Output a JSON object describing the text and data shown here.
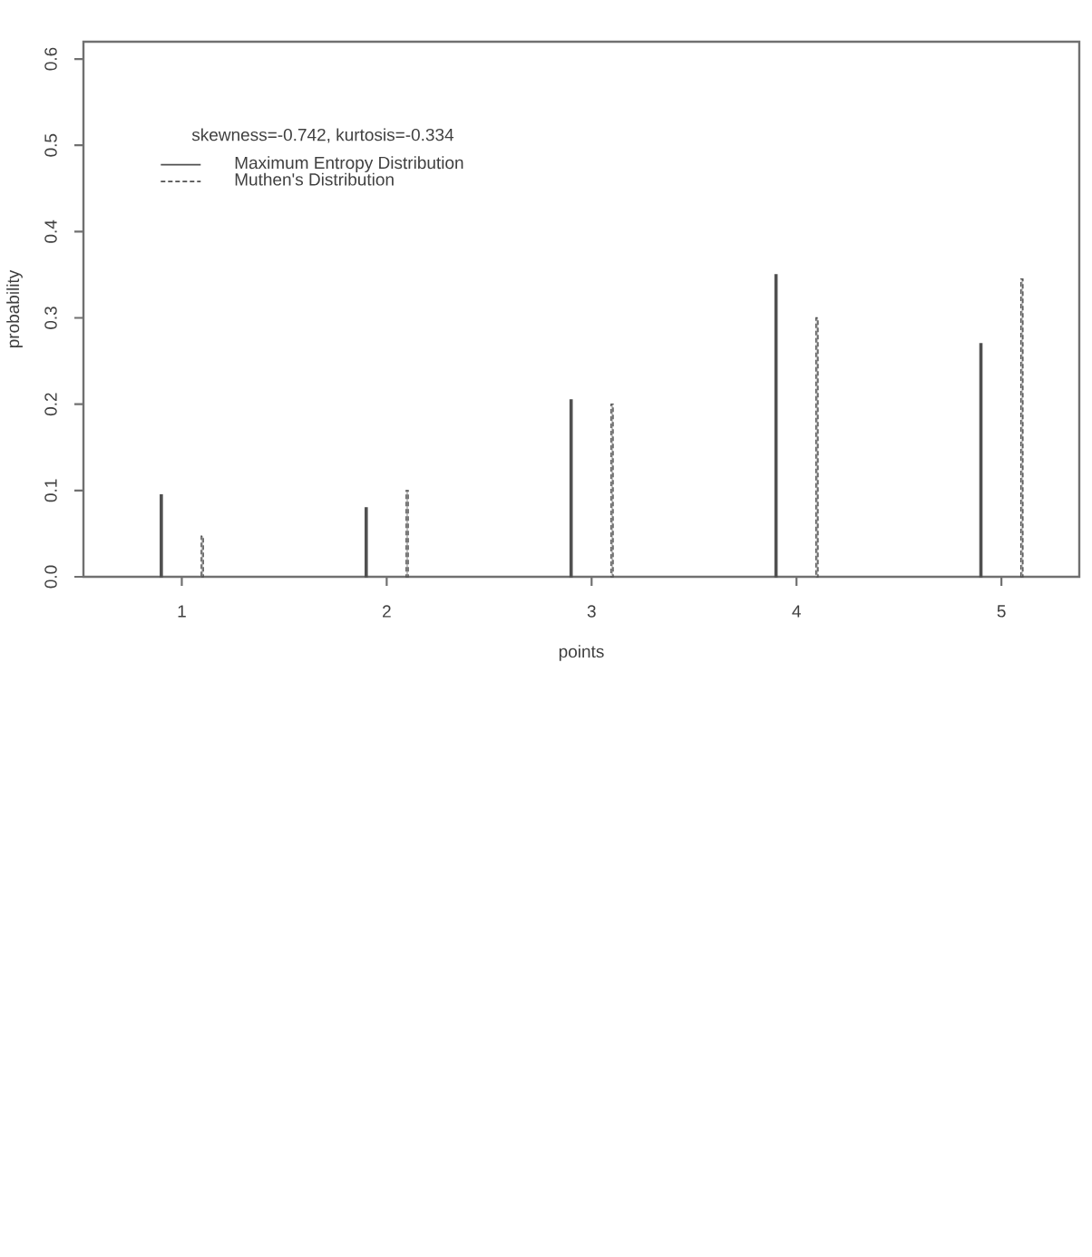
{
  "chart_data": {
    "type": "bar",
    "xlabel": "points",
    "ylabel": "probability",
    "legend_title": "skewness=-0.742, kurtosis=-0.334",
    "xlim": [
      0.52,
      5.38
    ],
    "ylim": [
      0,
      0.62
    ],
    "xticks": [
      1,
      2,
      3,
      4,
      5
    ],
    "yticks": [
      {
        "value": 0,
        "label": "0.0"
      },
      0.1,
      0.2,
      0.3,
      0.4,
      0.5,
      0.6
    ],
    "legend": "top left",
    "series": [
      {
        "name": "Maximum Entropy Distribution",
        "color": "#505050",
        "line_style": "solid",
        "x": [
          0.9,
          1.9,
          2.9,
          3.9,
          4.9
        ],
        "values": [
          0.095,
          0.08,
          0.205,
          0.35,
          0.27
        ]
      },
      {
        "name": "Muthen's Distribution",
        "color": "#505050",
        "line_style": "dashed",
        "x": [
          1.1,
          2.1,
          3.1,
          4.1,
          5.1
        ],
        "values": [
          0.047,
          0.1,
          0.2,
          0.3,
          0.345
        ]
      }
    ]
  }
}
